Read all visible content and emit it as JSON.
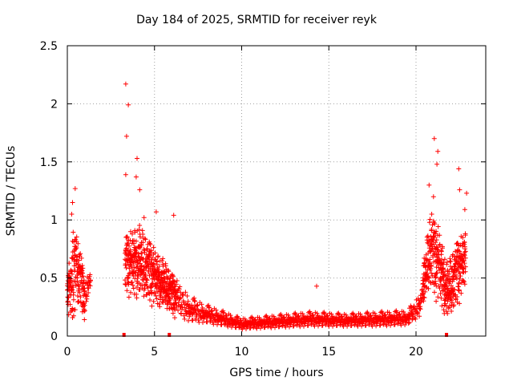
{
  "chart_data": {
    "type": "scatter",
    "title": "Day 184 of 2025, SRMTID for receiver reyk",
    "xlabel": "GPS time / hours",
    "ylabel": "SRMTID / TECUs",
    "xlim": [
      0,
      24
    ],
    "ylim": [
      0,
      2.5
    ],
    "xticks": [
      0,
      5,
      10,
      15,
      20
    ],
    "yticks": [
      0,
      0.5,
      1,
      1.5,
      2,
      2.5
    ],
    "grid": true,
    "marker": "plus",
    "color": "#ff0000",
    "highlights": [
      {
        "x": 3.35,
        "y": 2.17
      },
      {
        "x": 3.5,
        "y": 1.99
      },
      {
        "x": 3.4,
        "y": 1.72
      },
      {
        "x": 4.0,
        "y": 1.53
      },
      {
        "x": 3.35,
        "y": 1.39
      },
      {
        "x": 3.95,
        "y": 1.37
      },
      {
        "x": 0.45,
        "y": 1.27
      },
      {
        "x": 4.15,
        "y": 1.26
      },
      {
        "x": 0.3,
        "y": 1.15
      },
      {
        "x": 0.25,
        "y": 1.05
      },
      {
        "x": 6.1,
        "y": 1.04
      },
      {
        "x": 5.1,
        "y": 1.07
      },
      {
        "x": 4.4,
        "y": 1.02
      },
      {
        "x": 14.3,
        "y": 0.43
      },
      {
        "x": 21.05,
        "y": 1.7
      },
      {
        "x": 21.25,
        "y": 1.59
      },
      {
        "x": 21.2,
        "y": 1.48
      },
      {
        "x": 22.45,
        "y": 1.44
      },
      {
        "x": 20.75,
        "y": 1.3
      },
      {
        "x": 22.5,
        "y": 1.26
      },
      {
        "x": 22.9,
        "y": 1.23
      },
      {
        "x": 21.0,
        "y": 1.2
      },
      {
        "x": 22.8,
        "y": 1.09
      },
      {
        "x": 20.9,
        "y": 1.05
      }
    ],
    "envelope": [
      {
        "x": 0.0,
        "mean": 0.3,
        "spread": 0.25
      },
      {
        "x": 0.3,
        "mean": 0.55,
        "spread": 0.45
      },
      {
        "x": 0.7,
        "mean": 0.5,
        "spread": 0.35
      },
      {
        "x": 1.0,
        "mean": 0.3,
        "spread": 0.2
      },
      {
        "x": 1.25,
        "mean": 0.45,
        "spread": 0.1
      },
      {
        "x": 3.35,
        "mean": 0.6,
        "spread": 0.3
      },
      {
        "x": 4.0,
        "mean": 0.62,
        "spread": 0.4
      },
      {
        "x": 5.0,
        "mean": 0.5,
        "spread": 0.3
      },
      {
        "x": 6.0,
        "mean": 0.35,
        "spread": 0.22
      },
      {
        "x": 7.0,
        "mean": 0.22,
        "spread": 0.14
      },
      {
        "x": 8.0,
        "mean": 0.18,
        "spread": 0.1
      },
      {
        "x": 9.0,
        "mean": 0.14,
        "spread": 0.08
      },
      {
        "x": 10.0,
        "mean": 0.1,
        "spread": 0.06
      },
      {
        "x": 12.0,
        "mean": 0.12,
        "spread": 0.07
      },
      {
        "x": 14.0,
        "mean": 0.14,
        "spread": 0.08
      },
      {
        "x": 16.0,
        "mean": 0.13,
        "spread": 0.07
      },
      {
        "x": 18.0,
        "mean": 0.14,
        "spread": 0.08
      },
      {
        "x": 19.5,
        "mean": 0.15,
        "spread": 0.08
      },
      {
        "x": 20.2,
        "mean": 0.25,
        "spread": 0.12
      },
      {
        "x": 20.8,
        "mean": 0.7,
        "spread": 0.4
      },
      {
        "x": 21.3,
        "mean": 0.6,
        "spread": 0.4
      },
      {
        "x": 21.8,
        "mean": 0.35,
        "spread": 0.3
      },
      {
        "x": 22.3,
        "mean": 0.5,
        "spread": 0.35
      },
      {
        "x": 22.8,
        "mean": 0.65,
        "spread": 0.3
      }
    ],
    "gaps": [
      [
        1.35,
        3.3
      ]
    ],
    "zero_points": [
      3.25,
      5.85,
      21.75
    ]
  }
}
